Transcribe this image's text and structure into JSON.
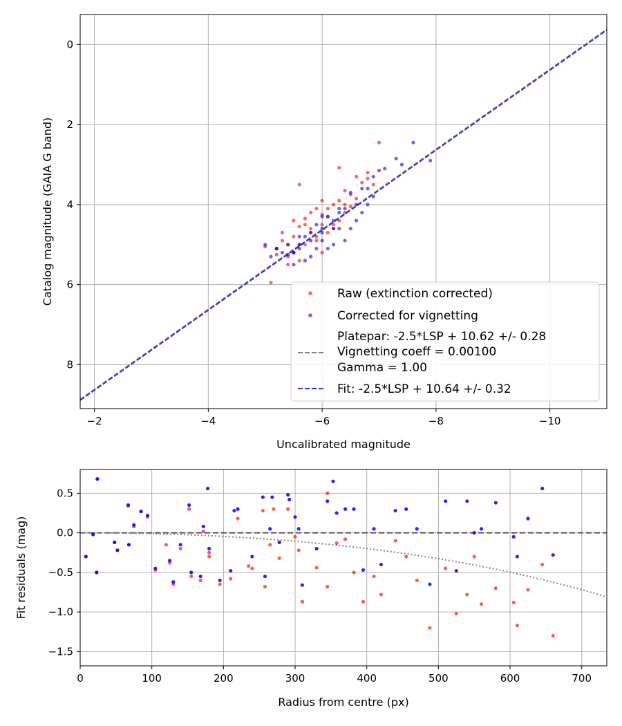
{
  "chart_data": [
    {
      "type": "scatter",
      "xlabel": "Uncalibrated magnitude",
      "ylabel": "Catalog magnitude (GAIA G band)",
      "xlim": [
        -1.75,
        -11.0
      ],
      "ylim": [
        9.1,
        -0.75
      ],
      "xticks": [
        -2,
        -4,
        -6,
        -8,
        -10
      ],
      "yticks": [
        0,
        2,
        4,
        6,
        8
      ],
      "xtick_labels": [
        "−2",
        "−4",
        "−6",
        "−8",
        "−10"
      ],
      "ytick_labels": [
        "0",
        "2",
        "4",
        "6",
        "8"
      ],
      "grid": true,
      "legend_position": "lower-right",
      "legend": {
        "raw": "Raw (extinction corrected)",
        "corrected": "Corrected for vignetting",
        "platepar_line1": "Platepar: -2.5*LSP + 10.62 +/- 0.28",
        "platepar_line2": "Vignetting coeff = 0.00100",
        "platepar_line3": "Gamma = 1.00",
        "fit": "Fit: -2.5*LSP + 10.64 +/- 0.32"
      },
      "colors": {
        "raw": "#ff0000",
        "corrected": "#0000ff",
        "platepar": "#808080",
        "fit": "#3333dd"
      },
      "lines": [
        {
          "name": "platepar",
          "slope": 1.0,
          "intercept": 10.62,
          "style": "dashed"
        },
        {
          "name": "fit",
          "slope": 1.0,
          "intercept": 10.64,
          "style": "dashed"
        }
      ],
      "series": [
        {
          "name": "Raw (extinction corrected)",
          "x": [
            -7.0,
            -6.3,
            -6.8,
            -6.6,
            -6.4,
            -5.6,
            -6.0,
            -5.8,
            -5.5,
            -6.2,
            -5.3,
            -5.2,
            -5.4,
            -5.7,
            -5.9,
            -6.1,
            -5.0,
            -5.6,
            -6.5,
            -6.9,
            -5.8,
            -6.2,
            -5.5,
            -6.3,
            -6.7,
            -5.9,
            -6.1,
            -5.4,
            -6.0,
            -5.7,
            -6.4,
            -5.3,
            -6.6,
            -5.6,
            -6.2,
            -5.1,
            -5.8,
            -6.0,
            -5.5,
            -6.3,
            -5.9,
            -6.5,
            -5.7,
            -6.1,
            -5.4,
            -6.8,
            -5.2,
            -6.0,
            -5.6,
            -6.4
          ],
          "y": [
            2.45,
            3.08,
            3.2,
            3.3,
            3.65,
            3.5,
            3.9,
            4.2,
            4.4,
            4.0,
            4.7,
            5.1,
            5.0,
            4.5,
            4.8,
            4.3,
            5.05,
            5.4,
            4.05,
            3.5,
            4.6,
            4.5,
            5.2,
            3.9,
            3.45,
            4.9,
            4.1,
            5.3,
            4.5,
            4.35,
            4.2,
            4.9,
            3.85,
            5.0,
            4.6,
            5.95,
            4.7,
            5.2,
            4.8,
            4.4,
            4.1,
            3.75,
            5.0,
            4.7,
            5.5,
            3.35,
            5.25,
            4.25,
            4.55,
            4.0
          ]
        },
        {
          "name": "Corrected for vignetting",
          "x": [
            -7.6,
            -7.9,
            -7.4,
            -7.1,
            -6.9,
            -6.7,
            -6.5,
            -6.8,
            -6.3,
            -6.0,
            -5.9,
            -6.2,
            -5.6,
            -5.4,
            -5.2,
            -5.5,
            -5.8,
            -6.1,
            -6.4,
            -6.6,
            -5.7,
            -6.3,
            -5.3,
            -5.0,
            -6.0,
            -5.6,
            -6.5,
            -6.2,
            -5.8,
            -5.4,
            -6.1,
            -7.3,
            -6.9,
            -5.7,
            -5.5,
            -6.4,
            -6.0,
            -5.9,
            -6.7,
            -7.0,
            -5.6,
            -6.3,
            -5.2,
            -5.8,
            -6.6,
            -5.1,
            -6.2,
            -5.5,
            -6.8,
            -6.0
          ],
          "y": [
            2.45,
            2.9,
            3.0,
            3.1,
            3.3,
            3.6,
            3.7,
            4.0,
            4.1,
            4.3,
            4.5,
            4.6,
            4.8,
            5.0,
            5.1,
            5.2,
            5.3,
            5.1,
            4.9,
            4.4,
            5.4,
            4.2,
            5.2,
            5.0,
            4.7,
            5.0,
            4.6,
            4.4,
            4.9,
            5.25,
            4.3,
            2.85,
            3.8,
            4.8,
            5.5,
            4.1,
            4.6,
            5.1,
            4.2,
            3.15,
            5.1,
            4.6,
            5.1,
            4.7,
            4.0,
            5.3,
            5.0,
            5.2,
            3.6,
            4.9
          ]
        }
      ]
    },
    {
      "type": "scatter",
      "xlabel": "Radius from centre (px)",
      "ylabel": "Fit residuals (mag)",
      "xlim": [
        0,
        735
      ],
      "ylim": [
        -1.68,
        0.8
      ],
      "xticks": [
        0,
        100,
        200,
        300,
        400,
        500,
        600,
        700
      ],
      "yticks": [
        0.5,
        0.0,
        -0.5,
        -1.0,
        -1.5
      ],
      "xtick_labels": [
        "0",
        "100",
        "200",
        "300",
        "400",
        "500",
        "600",
        "700"
      ],
      "ytick_labels": [
        "0.5",
        "0.0",
        "−0.5",
        "−1.0",
        "−1.5"
      ],
      "grid": true,
      "lines": [
        {
          "name": "zero",
          "style": "dashed",
          "color": "#555555"
        },
        {
          "name": "vignetting-model",
          "style": "dotted",
          "color": "#808080",
          "x": [
            0,
            50,
            100,
            150,
            200,
            250,
            300,
            350,
            400,
            450,
            500,
            550,
            600,
            650,
            700,
            735
          ],
          "y": [
            0,
            -0.002,
            -0.01,
            -0.024,
            -0.045,
            -0.072,
            -0.106,
            -0.148,
            -0.198,
            -0.257,
            -0.326,
            -0.405,
            -0.496,
            -0.6,
            -0.717,
            -0.81
          ]
        }
      ],
      "series": [
        {
          "name": "Raw (extinction corrected)",
          "x": [
            8,
            18,
            23,
            24,
            48,
            52,
            67,
            68,
            75,
            85,
            94,
            105,
            125,
            130,
            140,
            152,
            155,
            168,
            172,
            180,
            195,
            210,
            220,
            240,
            255,
            258,
            265,
            278,
            290,
            300,
            305,
            310,
            330,
            345,
            358,
            370,
            382,
            395,
            410,
            420,
            440,
            455,
            470,
            488,
            510,
            525,
            540,
            550,
            560,
            580,
            605,
            610,
            625,
            645,
            660,
            345,
            270,
            235,
            180,
            120
          ],
          "y": [
            -0.3,
            -0.02,
            -0.5,
            0.68,
            -0.12,
            -0.22,
            0.34,
            -0.15,
            0.08,
            0.27,
            0.2,
            -0.47,
            -0.38,
            -0.65,
            -0.2,
            0.3,
            -0.55,
            -0.6,
            0.02,
            -0.25,
            -0.65,
            -0.58,
            0.18,
            -0.45,
            0.28,
            -0.68,
            -0.15,
            -0.32,
            0.3,
            -0.05,
            -0.22,
            -0.87,
            -0.44,
            -0.68,
            -0.13,
            -0.08,
            -0.5,
            -0.87,
            -0.55,
            -0.78,
            -0.1,
            -0.3,
            -0.6,
            -1.2,
            -0.45,
            -1.02,
            -0.78,
            -0.3,
            -0.9,
            -0.7,
            -0.88,
            -1.17,
            -0.72,
            -0.4,
            -1.3,
            0.5,
            0.3,
            -0.42,
            -0.3,
            -0.15
          ]
        },
        {
          "name": "Corrected for vignetting",
          "x": [
            8,
            18,
            23,
            24,
            48,
            52,
            67,
            68,
            75,
            85,
            94,
            105,
            125,
            130,
            140,
            152,
            155,
            168,
            172,
            180,
            195,
            210,
            220,
            240,
            255,
            258,
            265,
            278,
            290,
            300,
            305,
            310,
            330,
            345,
            358,
            370,
            382,
            395,
            410,
            420,
            440,
            455,
            470,
            488,
            510,
            525,
            540,
            550,
            560,
            580,
            605,
            610,
            625,
            645,
            660,
            353,
            292,
            178,
            215,
            268
          ],
          "y": [
            -0.3,
            -0.02,
            -0.5,
            0.68,
            -0.12,
            -0.22,
            0.35,
            -0.15,
            0.1,
            0.27,
            0.22,
            -0.45,
            -0.35,
            -0.62,
            -0.15,
            0.35,
            -0.5,
            -0.55,
            0.08,
            -0.2,
            -0.6,
            -0.48,
            0.3,
            -0.3,
            0.45,
            -0.55,
            0.05,
            -0.12,
            0.48,
            0.2,
            0.05,
            -0.66,
            -0.2,
            0.4,
            0.25,
            0.3,
            0.3,
            -0.47,
            0.05,
            -0.4,
            0.28,
            0.3,
            0.05,
            -0.65,
            0.4,
            -0.48,
            0.4,
            0.0,
            0.05,
            0.38,
            -0.05,
            -0.3,
            0.18,
            0.56,
            -0.28,
            0.65,
            0.42,
            0.56,
            0.28,
            0.45
          ]
        }
      ]
    }
  ]
}
